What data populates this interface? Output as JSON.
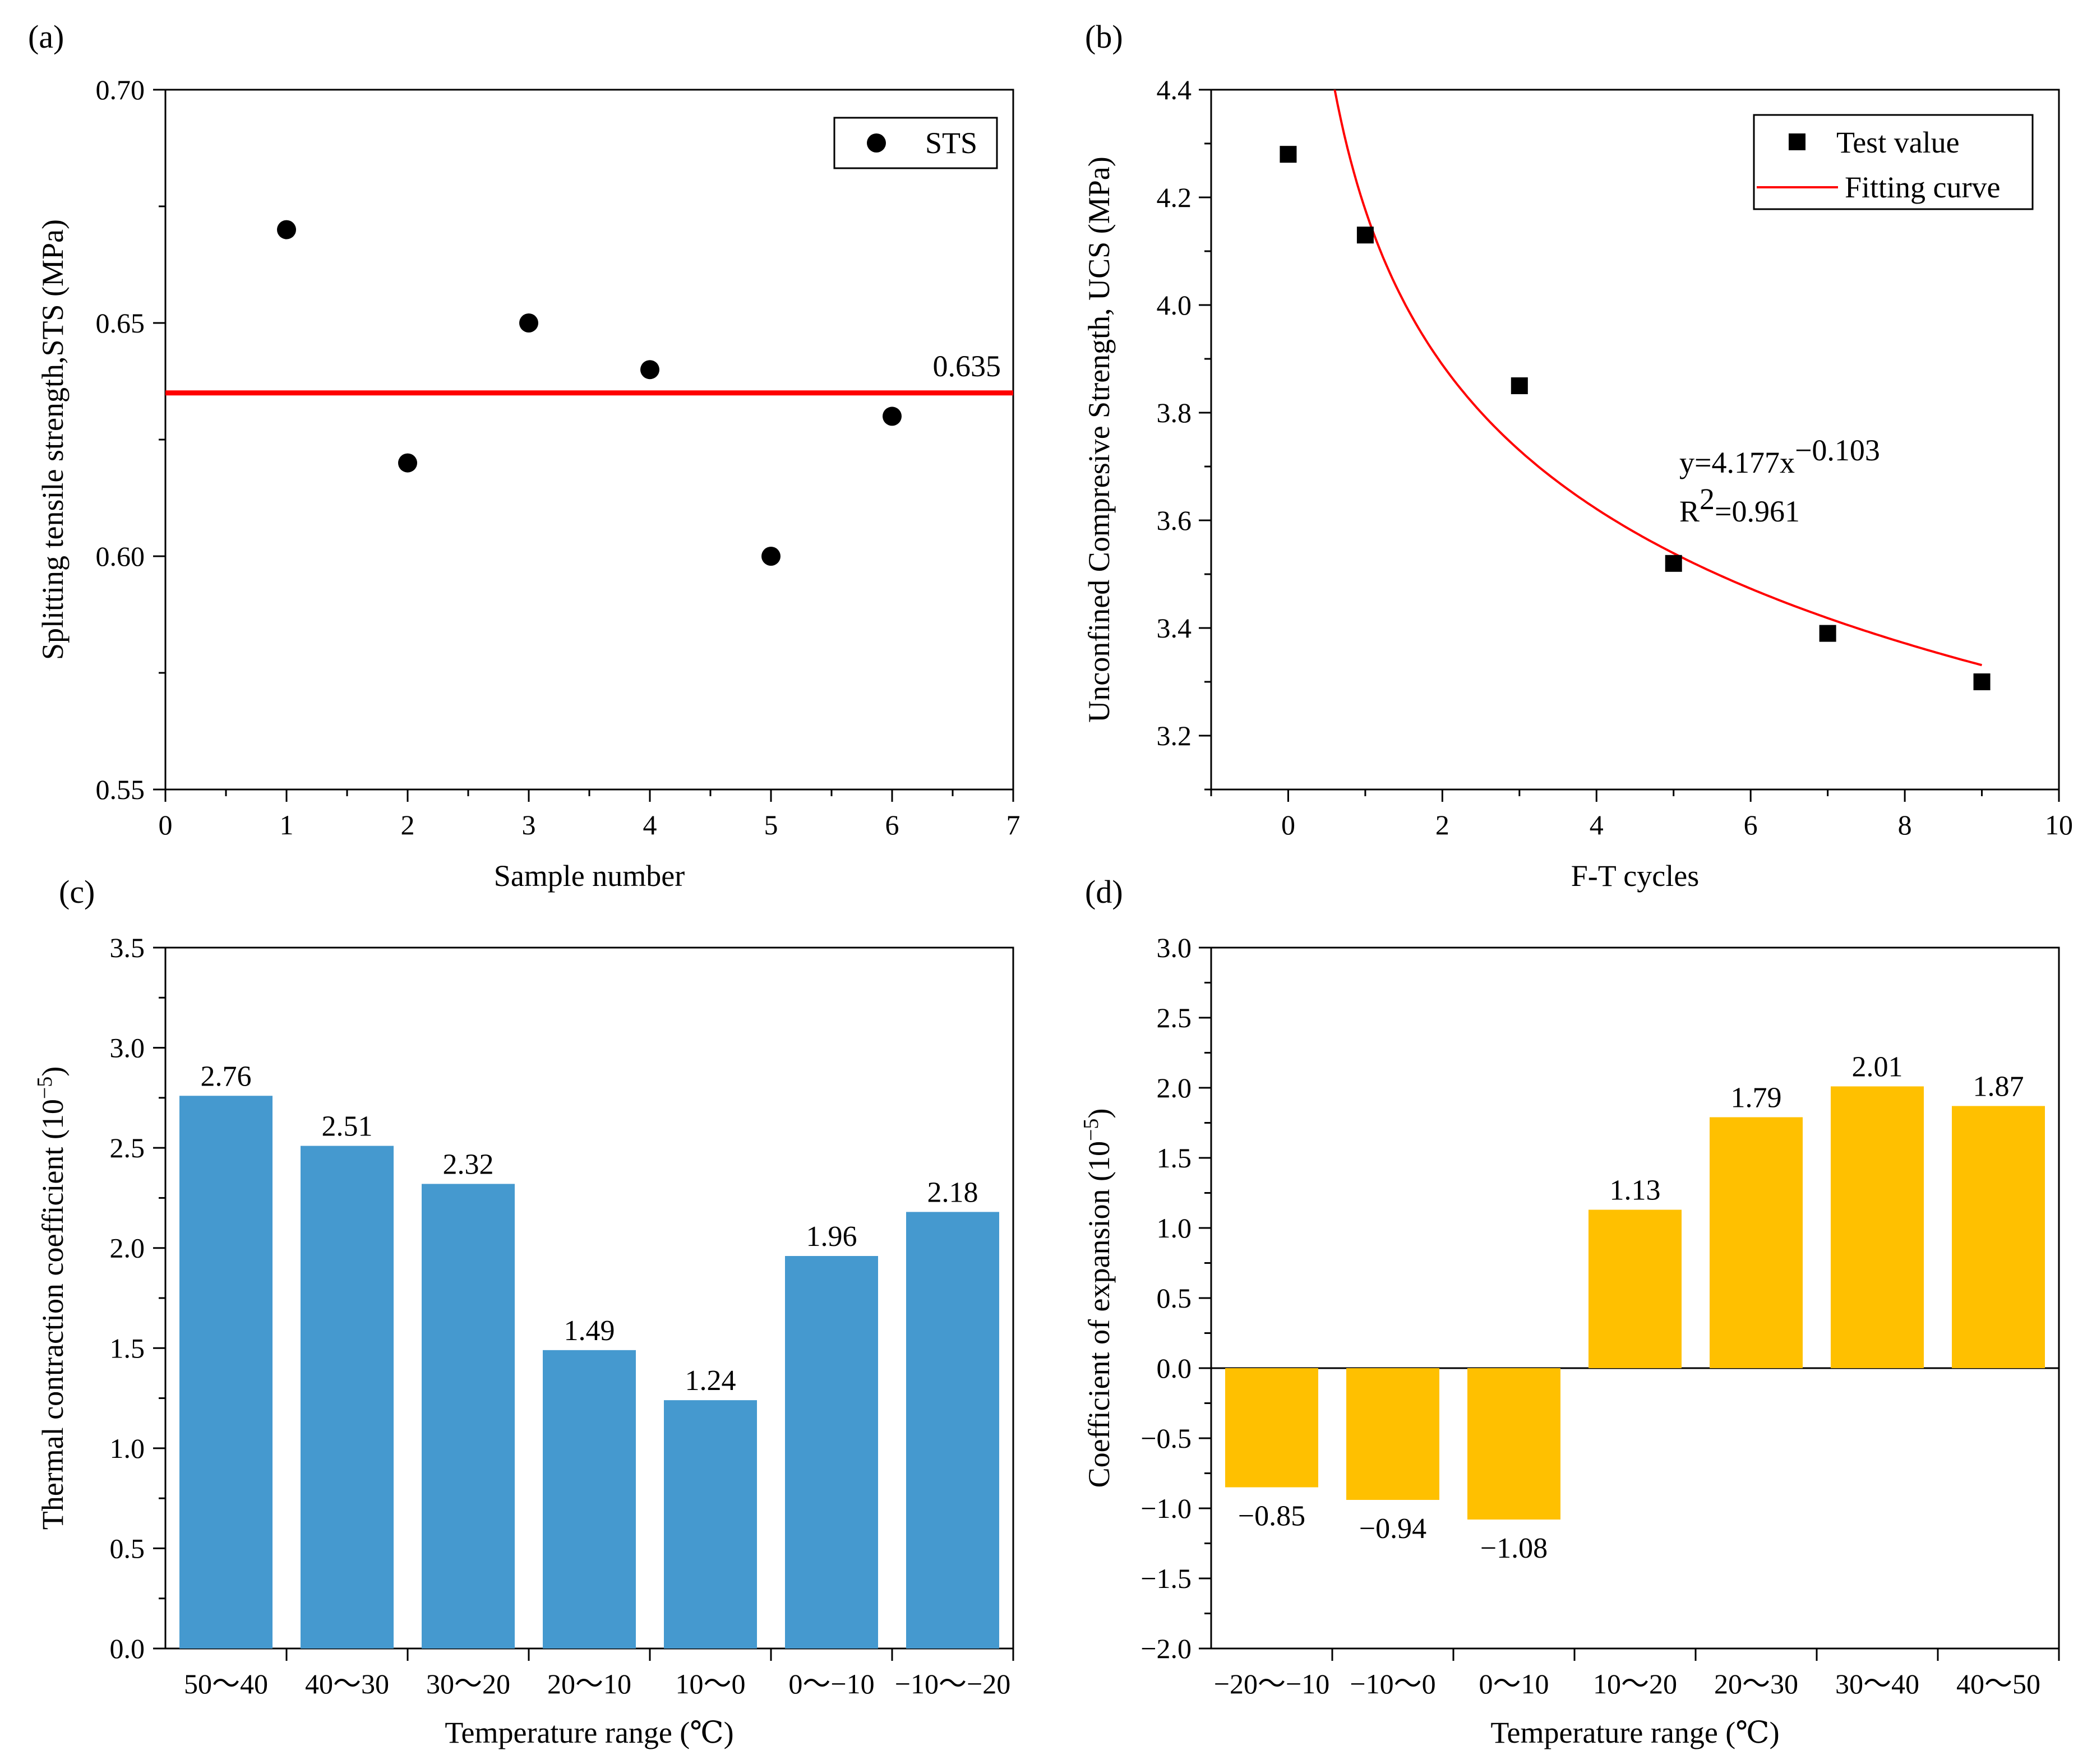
{
  "chart_data": [
    {
      "id": "a",
      "panel_label": "(a)",
      "type": "scatter",
      "xlabel": "Sample number",
      "ylabel": "Splitting tensile strength,STS (MPa)",
      "xlim": [
        0,
        7
      ],
      "ylim": [
        0.55,
        0.7
      ],
      "xticks": [
        0,
        1,
        2,
        3,
        4,
        5,
        6,
        7
      ],
      "yticks": [
        0.55,
        0.6,
        0.65,
        0.7
      ],
      "ytick_labels": [
        "0.55",
        "0.60",
        "0.65",
        "0.70"
      ],
      "grid": false,
      "legend_position": "top-right",
      "series": [
        {
          "name": "STS",
          "marker": "circle",
          "color": "#000000",
          "x": [
            1,
            2,
            3,
            4,
            5,
            6
          ],
          "y": [
            0.67,
            0.62,
            0.65,
            0.64,
            0.6,
            0.63
          ]
        }
      ],
      "reference_line": {
        "y": 0.635,
        "label": "0.635",
        "color": "#ff0000"
      }
    },
    {
      "id": "b",
      "panel_label": "(b)",
      "type": "scatter",
      "xlabel": "F-T cycles",
      "ylabel": "Unconfined Compresive Strength, UCS (MPa)",
      "xlim": [
        -1,
        10
      ],
      "ylim": [
        3.1,
        4.4
      ],
      "xticks": [
        0,
        2,
        4,
        6,
        8,
        10
      ],
      "yticks": [
        3.2,
        3.4,
        3.6,
        3.8,
        4.0,
        4.2,
        4.4
      ],
      "ytick_labels": [
        "3.2",
        "3.4",
        "3.6",
        "3.8",
        "4.0",
        "4.2",
        "4.4"
      ],
      "grid": false,
      "legend_position": "top-right",
      "series": [
        {
          "name": "Test value",
          "marker": "square",
          "color": "#000000",
          "x": [
            0,
            1,
            3,
            5,
            7,
            9
          ],
          "y": [
            4.28,
            4.13,
            3.85,
            3.52,
            3.39,
            3.3
          ]
        }
      ],
      "fit": {
        "name": "Fitting curve",
        "color": "#ff0000",
        "coefficient": 4.177,
        "exponent": -0.103,
        "x_range": [
          0.6,
          9
        ],
        "equation_prefix": "y=4.177x",
        "equation_exponent": "−0.103",
        "r2_prefix": "R",
        "r2_exponent": "2",
        "r2_value": "=0.961"
      }
    },
    {
      "id": "c",
      "panel_label": "(c)",
      "type": "bar",
      "xlabel": "Temperature range (℃)",
      "ylabel": "Thermal contraction coefficient (10",
      "ylabel_exponent": "−5",
      "ylabel_suffix": ")",
      "ylim": [
        0,
        3.5
      ],
      "yticks": [
        0.0,
        0.5,
        1.0,
        1.5,
        2.0,
        2.5,
        3.0,
        3.5
      ],
      "ytick_labels": [
        "0.0",
        "0.5",
        "1.0",
        "1.5",
        "2.0",
        "2.5",
        "3.0",
        "3.5"
      ],
      "grid": false,
      "color": "#4599cf",
      "categories": [
        "50～40",
        "40～30",
        "30～20",
        "20～10",
        "10～0",
        "0～−10",
        "−10～−20"
      ],
      "values": [
        2.76,
        2.51,
        2.32,
        1.49,
        1.24,
        1.96,
        2.18
      ],
      "value_labels": [
        "2.76",
        "2.51",
        "2.32",
        "1.49",
        "1.24",
        "1.96",
        "2.18"
      ]
    },
    {
      "id": "d",
      "panel_label": "(d)",
      "type": "bar",
      "xlabel": "Temperature range (℃)",
      "ylabel": "Coefficient of expansion (10",
      "ylabel_exponent": "−5",
      "ylabel_suffix": ")",
      "ylim": [
        -2.0,
        3.0
      ],
      "yticks": [
        -2.0,
        -1.5,
        -1.0,
        -0.5,
        0.0,
        0.5,
        1.0,
        1.5,
        2.0,
        2.5,
        3.0
      ],
      "ytick_labels": [
        "−2.0",
        "−1.5",
        "−1.0",
        "−0.5",
        "0.0",
        "0.5",
        "1.0",
        "1.5",
        "2.0",
        "2.5",
        "3.0"
      ],
      "grid": false,
      "color": "#ffc000",
      "categories": [
        "−20～−10",
        "−10～0",
        "0～10",
        "10～20",
        "20～30",
        "30～40",
        "40～50"
      ],
      "values": [
        -0.85,
        -0.94,
        -1.08,
        1.13,
        1.79,
        2.01,
        1.87
      ],
      "value_labels": [
        "−0.85",
        "−0.94",
        "−1.08",
        "1.13",
        "1.79",
        "2.01",
        "1.87"
      ]
    }
  ]
}
